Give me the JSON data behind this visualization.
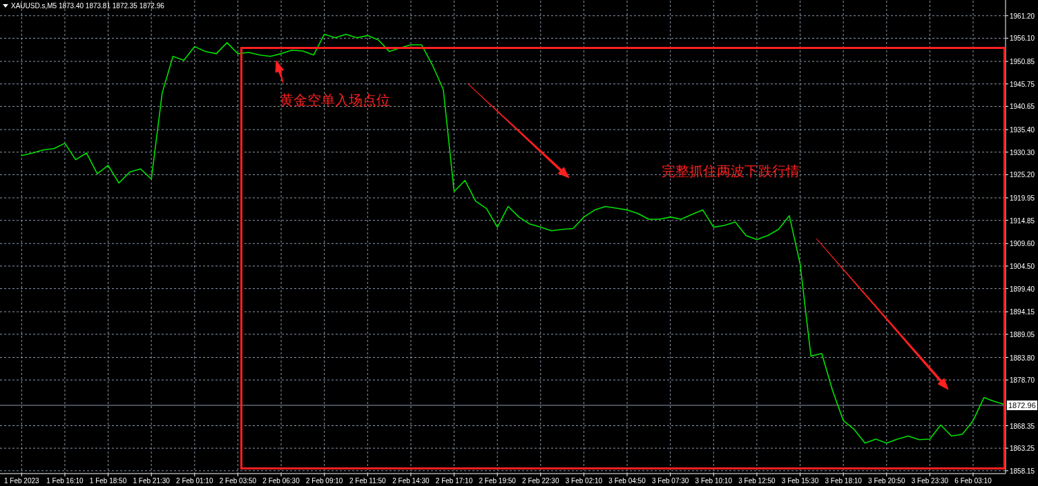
{
  "chart_data": {
    "type": "line",
    "title": "XAUUSD.s,M5  1873.40 1873.81 1872.35 1872.96",
    "annotations": [
      "黄金空单入场点位",
      "完整抓住两波下跌行情"
    ],
    "categories": [
      "1 Feb 2023",
      null,
      null,
      null,
      "1 Feb 16:10",
      null,
      null,
      null,
      "1 Feb 18:50",
      null,
      null,
      null,
      "1 Feb 21:30",
      null,
      null,
      null,
      "2 Feb 01:10",
      null,
      null,
      null,
      "2 Feb 03:50",
      null,
      null,
      null,
      "2 Feb 06:30",
      null,
      null,
      null,
      "2 Feb 09:10",
      null,
      null,
      null,
      "2 Feb 11:50",
      null,
      null,
      null,
      "2 Feb 14:30",
      null,
      null,
      null,
      "2 Feb 17:10",
      null,
      null,
      null,
      "2 Feb 19:50",
      null,
      null,
      null,
      "2 Feb 22:30",
      null,
      null,
      null,
      "3 Feb 02:10",
      null,
      null,
      null,
      "3 Feb 04:50",
      null,
      null,
      null,
      "3 Feb 07:30",
      null,
      null,
      null,
      "3 Feb 10:10",
      null,
      null,
      null,
      "3 Feb 12:50",
      null,
      null,
      null,
      "3 Feb 15:30",
      null,
      null,
      null,
      "3 Feb 18:10",
      null,
      null,
      null,
      "3 Feb 20:50",
      null,
      null,
      null,
      "3 Feb 23:30",
      null,
      null,
      null,
      "6 Feb 03:10",
      null,
      null,
      null
    ],
    "series": [
      {
        "color": "#00e000",
        "values": [
          1929.5,
          1930.1,
          1930.8,
          1931.1,
          1932.3,
          1928.6,
          1930.1,
          1925.4,
          1927.3,
          1923.3,
          1925.8,
          1926.5,
          1924.2,
          1943.7,
          1952.0,
          1951.1,
          1954.2,
          1953.1,
          1952.6,
          1955.1,
          1952.6,
          1952.9,
          1952.3,
          1952.0,
          1952.6,
          1953.4,
          1953.2,
          1952.3,
          1957.0,
          1956.2,
          1957.0,
          1956.2,
          1956.7,
          1955.7,
          1953.1,
          1953.9,
          1954.6,
          1954.6,
          1950.0,
          1944.5,
          1921.4,
          1923.9,
          1919.2,
          1917.5,
          1913.3,
          1918.0,
          1915.6,
          1914.0,
          1913.3,
          1912.5,
          1912.8,
          1913.0,
          1915.6,
          1917.2,
          1918.0,
          1917.6,
          1917.2,
          1916.4,
          1915.1,
          1915.1,
          1915.6,
          1915.1,
          1916.2,
          1917.2,
          1913.3,
          1913.7,
          1914.5,
          1911.4,
          1910.5,
          1911.4,
          1912.8,
          1915.9,
          1905.0,
          1884.1,
          1884.7,
          1876.3,
          1869.5,
          1867.5,
          1864.4,
          1865.3,
          1864.4,
          1865.3,
          1866.0,
          1865.2,
          1865.3,
          1868.5,
          1866.0,
          1866.4,
          1869.5,
          1874.7,
          1873.8,
          1873.1
        ]
      }
    ],
    "ylim": [
      1857.5,
      1964.6
    ],
    "yticks": [
      {
        "value": 1961.2,
        "label": "1961.20"
      },
      {
        "value": 1956.1,
        "label": "1956.10"
      },
      {
        "value": 1950.85,
        "label": "1950.85"
      },
      {
        "value": 1945.75,
        "label": "1945.75"
      },
      {
        "value": 1940.65,
        "label": "1940.65"
      },
      {
        "value": 1935.4,
        "label": "1935.40"
      },
      {
        "value": 1930.3,
        "label": "1930.30"
      },
      {
        "value": 1925.2,
        "label": "1925.20"
      },
      {
        "value": 1919.95,
        "label": "1919.95"
      },
      {
        "value": 1914.85,
        "label": "1914.85"
      },
      {
        "value": 1909.6,
        "label": "1909.60"
      },
      {
        "value": 1904.5,
        "label": "1904.50"
      },
      {
        "value": 1899.4,
        "label": "1899.40"
      },
      {
        "value": 1894.15,
        "label": "1894.15"
      },
      {
        "value": 1889.05,
        "label": "1889.05"
      },
      {
        "value": 1883.8,
        "label": "1883.80"
      },
      {
        "value": 1878.7,
        "label": "1878.70"
      },
      {
        "value": 1868.35,
        "label": "1868.35"
      },
      {
        "value": 1863.25,
        "label": "1863.25"
      },
      {
        "value": 1858.15,
        "label": "1858.15"
      }
    ],
    "grid": true,
    "ref_lines": [
      {
        "axis": "y",
        "value": 1872.96,
        "label": "1872.96",
        "color": "#8c9cac"
      }
    ]
  }
}
